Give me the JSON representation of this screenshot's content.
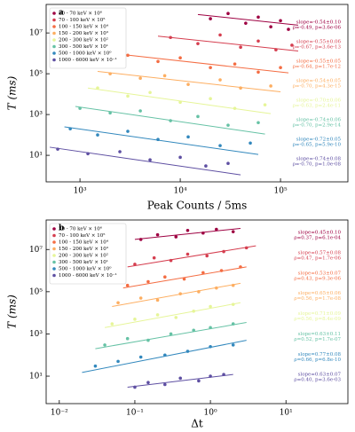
{
  "chart_data": [
    {
      "type": "scatter",
      "panel_label": "a",
      "x_label": "Peak Counts / 5ms",
      "y_label": "T (ms)",
      "log_x": true,
      "log_y": true,
      "xlim": [
        460,
        470000
      ],
      "ylim": [
        0.5,
        250000000
      ],
      "xticks": [
        {
          "value": 1000,
          "label": "10³"
        },
        {
          "value": 10000,
          "label": "10⁴"
        },
        {
          "value": 100000,
          "label": "10⁵"
        }
      ],
      "yticks": [
        {
          "value": 10,
          "label": "10¹"
        },
        {
          "value": 1000,
          "label": "10³"
        },
        {
          "value": 100000,
          "label": "10⁵"
        },
        {
          "value": 10000000,
          "label": "10⁷"
        }
      ],
      "series": [
        {
          "name": "30 - 70 keV × 10⁶",
          "color": "#9e0142",
          "x": [
            20000,
            30000,
            45000,
            60000,
            80000,
            100000,
            120000
          ],
          "values": [
            50000000,
            90000000,
            30000000,
            60000000,
            20000000,
            40000000,
            15000000
          ],
          "fit_x": [
            15000,
            150000
          ],
          "fit_y": [
            80000000,
            24000000
          ],
          "slope": "slope=-0.54±0.10",
          "stats": "ρ=-0.49, p=3.6e-06"
        },
        {
          "name": "70 - 100 keV × 10⁵",
          "color": "#d53e4f",
          "x": [
            8000,
            15000,
            25000,
            40000,
            60000,
            90000,
            130000
          ],
          "values": [
            6000000,
            3000000,
            8000000,
            2000000,
            4000000,
            1500000,
            2500000
          ],
          "fit_x": [
            6000,
            150000
          ],
          "fit_y": [
            7000000,
            1300000
          ],
          "slope": "slope=-0.55±0.06",
          "stats": "ρ=-0.67, p=3.6e-13"
        },
        {
          "name": "100 - 150 keV × 10⁴",
          "color": "#f46d43",
          "x": [
            3000,
            6000,
            10000,
            20000,
            35000,
            60000,
            100000
          ],
          "values": [
            800000,
            400000,
            600000,
            200000,
            300000,
            120000,
            200000
          ],
          "fit_x": [
            2500,
            120000
          ],
          "fit_y": [
            900000,
            110000
          ],
          "slope": "slope=-0.55±0.05",
          "stats": "ρ=-0.64, p=1.7e-12"
        },
        {
          "name": "150 - 200 keV × 10³",
          "color": "#fdae61",
          "x": [
            2000,
            4000,
            7000,
            12000,
            25000,
            40000,
            80000
          ],
          "values": [
            100000,
            60000,
            80000,
            30000,
            50000,
            20000,
            25000
          ],
          "fit_x": [
            1500,
            100000
          ],
          "fit_y": [
            130000,
            13000
          ],
          "slope": "slope=-0.54±0.05",
          "stats": "ρ=-0.70, p=4.3e-15"
        },
        {
          "name": "200 - 300 keV × 10²",
          "color": "#e6f598",
          "x": [
            1500,
            3000,
            5000,
            10000,
            20000,
            35000,
            70000
          ],
          "values": [
            20000,
            8000,
            12000,
            4000,
            6000,
            2000,
            3000
          ],
          "fit_x": [
            1200,
            80000
          ],
          "fit_y": [
            20000,
            1100
          ],
          "slope": "slope=-0.70±0.06",
          "stats": "ρ=-0.63, p=2.4e-11"
        },
        {
          "name": "300 - 500 keV × 10¹",
          "color": "#66c2a5",
          "x": [
            1000,
            2000,
            4000,
            8000,
            15000,
            30000,
            60000
          ],
          "values": [
            2000,
            1200,
            1500,
            500,
            800,
            300,
            400
          ],
          "fit_x": [
            900,
            70000
          ],
          "fit_y": [
            2500,
            110
          ],
          "slope": "slope=-0.74±0.06",
          "stats": "ρ=-0.70, p=2.9e-14"
        },
        {
          "name": "500 - 1000 keV × 10⁰",
          "color": "#3288bd",
          "x": [
            800,
            1500,
            3000,
            6000,
            12000,
            25000,
            50000
          ],
          "values": [
            200,
            100,
            150,
            60,
            80,
            30,
            40
          ],
          "fit_x": [
            700,
            60000
          ],
          "fit_y": [
            250,
            11
          ],
          "slope": "slope=-0.72±0.05",
          "stats": "ρ=-0.65, p=5.9e-10"
        },
        {
          "name": "1000 - 6000 keV × 10⁻¹",
          "color": "#5e4fa2",
          "x": [
            600,
            1200,
            2500,
            5000,
            10000,
            18000,
            30000
          ],
          "values": [
            20,
            12,
            15,
            6,
            8,
            3,
            4
          ],
          "fit_x": [
            500,
            40000
          ],
          "fit_y": [
            25,
            1.1
          ],
          "slope": "slope=-0.74±0.08",
          "stats": "ρ=-0.70, p=1.0e-08"
        }
      ]
    },
    {
      "type": "scatter",
      "panel_label": "b",
      "x_label": "Δt",
      "y_label": "T (ms)",
      "log_x": true,
      "log_y": true,
      "xlim": [
        0.0067,
        66
      ],
      "ylim": [
        0.5,
        250000000
      ],
      "xticks": [
        {
          "value": 0.01,
          "label": "10⁻²"
        },
        {
          "value": 0.1,
          "label": "10⁻¹"
        },
        {
          "value": 1,
          "label": "10⁰"
        },
        {
          "value": 10,
          "label": "10¹"
        }
      ],
      "yticks": [
        {
          "value": 10,
          "label": "10¹"
        },
        {
          "value": 1000,
          "label": "10³"
        },
        {
          "value": 100000,
          "label": "10⁵"
        },
        {
          "value": 10000000,
          "label": "10⁷"
        }
      ],
      "series": [
        {
          "name": "30 - 70 keV × 10⁶",
          "color": "#9e0142",
          "x": [
            0.12,
            0.2,
            0.35,
            0.5,
            0.8,
            1.2,
            2
          ],
          "values": [
            30000000,
            50000000,
            40000000,
            80000000,
            60000000,
            90000000,
            70000000
          ],
          "fit_x": [
            0.1,
            2.5
          ],
          "fit_y": [
            30000000,
            100000000
          ],
          "slope": "slope=0.45±0.10",
          "stats": "ρ=0.37, p=6.1e-04"
        },
        {
          "name": "70 - 100 keV × 10⁵",
          "color": "#d53e4f",
          "x": [
            0.1,
            0.18,
            0.3,
            0.5,
            0.9,
            1.5,
            3
          ],
          "values": [
            2000000,
            4000000,
            3000000,
            6000000,
            5000000,
            8000000,
            12000000
          ],
          "fit_x": [
            0.08,
            4
          ],
          "fit_y": [
            1500000,
            15000000
          ],
          "slope": "slope=0.57±0.08",
          "stats": "ρ=0.47, p=1.7e-06"
        },
        {
          "name": "100 - 150 keV × 10⁴",
          "color": "#f46d43",
          "x": [
            0.08,
            0.15,
            0.25,
            0.45,
            0.8,
            1.4,
            2.5
          ],
          "values": [
            200000,
            300000,
            500000,
            400000,
            800000,
            1000000,
            1500000
          ],
          "fit_x": [
            0.07,
            3
          ],
          "fit_y": [
            150000,
            1500000
          ],
          "slope": "slope=0.53±0.07",
          "stats": "ρ=0.43, p=9.3e-06"
        },
        {
          "name": "150 - 200 keV × 10³",
          "color": "#fdae61",
          "x": [
            0.06,
            0.12,
            0.2,
            0.4,
            0.7,
            1.2,
            2
          ],
          "values": [
            30000,
            50000,
            40000,
            80000,
            100000,
            150000,
            200000
          ],
          "fit_x": [
            0.05,
            2.5
          ],
          "fit_y": [
            20000,
            250000
          ],
          "slope": "slope=0.65±0.06",
          "stats": "ρ=0.56, p=1.7e-08"
        },
        {
          "name": "200 - 300 keV × 10²",
          "color": "#e6f598",
          "x": [
            0.05,
            0.1,
            0.2,
            0.35,
            0.6,
            1,
            2
          ],
          "values": [
            3000,
            5000,
            8000,
            6000,
            12000,
            20000,
            25000
          ],
          "fit_x": [
            0.04,
            2.5
          ],
          "fit_y": [
            2000,
            30000
          ],
          "slope": "slope=0.71±0.09",
          "stats": "ρ=0.56, p=8.4e-09"
        },
        {
          "name": "300 - 500 keV × 10¹",
          "color": "#66c2a5",
          "x": [
            0.04,
            0.08,
            0.15,
            0.3,
            0.6,
            1,
            2
          ],
          "values": [
            300,
            600,
            500,
            1000,
            1500,
            2000,
            3000
          ],
          "fit_x": [
            0.03,
            3
          ],
          "fit_y": [
            200,
            3500
          ],
          "slope": "slope=0.63±0.11",
          "stats": "ρ=0.52, p=1.7e-07"
        },
        {
          "name": "500 - 1000 keV × 10⁰",
          "color": "#3288bd",
          "x": [
            0.03,
            0.06,
            0.12,
            0.25,
            0.5,
            1,
            2
          ],
          "values": [
            30,
            50,
            80,
            100,
            150,
            250,
            300
          ],
          "fit_x": [
            0.02,
            3
          ],
          "fit_y": [
            15,
            500
          ],
          "slope": "slope=0.77±0.08",
          "stats": "ρ=0.66, p=6.8e-10"
        },
        {
          "name": "1000 - 6000 keV × 10⁻¹",
          "color": "#5e4fa2",
          "x": [
            0.1,
            0.15,
            0.25,
            0.4,
            0.7,
            1,
            1.5
          ],
          "values": [
            3,
            5,
            4,
            8,
            6,
            10,
            12
          ],
          "fit_x": [
            0.08,
            2
          ],
          "fit_y": [
            3,
            12
          ],
          "slope": "slope=0.63±0.07",
          "stats": "ρ=0.40, p=3.6e-03"
        }
      ]
    }
  ]
}
